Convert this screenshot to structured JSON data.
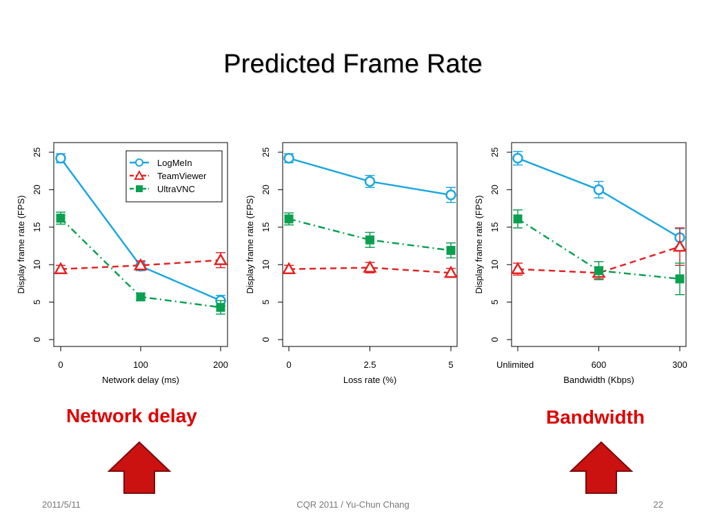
{
  "slide": {
    "title": "Predicted Frame Rate",
    "callout_left": "Network delay",
    "callout_right": "Bandwidth",
    "footer_date": "2011/5/11",
    "footer_center": "CQR 2011 / Yu-Chun Chang",
    "footer_page": "22",
    "callout_color": "#e00000",
    "arrow_color": "#cc1111"
  },
  "legend": [
    {
      "name": "LogMeIn",
      "color": "#1aa7e0",
      "marker": "circle",
      "dash": "solid"
    },
    {
      "name": "TeamViewer",
      "color": "#e52222",
      "marker": "triangle",
      "dash": "dashed"
    },
    {
      "name": "UltraVNC",
      "color": "#0aa050",
      "marker": "square",
      "dash": "dashdot"
    }
  ],
  "chart_data": [
    {
      "type": "line",
      "xlabel": "Network delay (ms)",
      "ylabel": "Display frame rate (FPS)",
      "categories": [
        "0",
        "100",
        "200"
      ],
      "ylim": [
        0,
        25
      ],
      "yticks": [
        0,
        5,
        10,
        15,
        20,
        25
      ],
      "legend": "top-right",
      "series": [
        {
          "name": "LogMeIn",
          "values": [
            24.2,
            9.8,
            5.2
          ],
          "err": [
            0.6,
            0.6,
            0.7
          ]
        },
        {
          "name": "TeamViewer",
          "values": [
            9.4,
            9.9,
            10.6
          ],
          "err": [
            0.5,
            0.6,
            1.0
          ]
        },
        {
          "name": "UltraVNC",
          "values": [
            16.2,
            5.7,
            4.3
          ],
          "err": [
            0.8,
            0.5,
            0.9
          ]
        }
      ]
    },
    {
      "type": "line",
      "xlabel": "Loss rate (%)",
      "ylabel": "Display frame rate (FPS)",
      "categories": [
        "0",
        "2.5",
        "5"
      ],
      "ylim": [
        0,
        25
      ],
      "yticks": [
        0,
        5,
        10,
        15,
        20,
        25
      ],
      "series": [
        {
          "name": "LogMeIn",
          "values": [
            24.2,
            21.1,
            19.3
          ],
          "err": [
            0.6,
            0.8,
            1.0
          ]
        },
        {
          "name": "TeamViewer",
          "values": [
            9.4,
            9.6,
            8.9
          ],
          "err": [
            0.5,
            0.7,
            0.6
          ]
        },
        {
          "name": "UltraVNC",
          "values": [
            16.1,
            13.3,
            11.9
          ],
          "err": [
            0.8,
            1.0,
            1.0
          ]
        }
      ]
    },
    {
      "type": "line",
      "xlabel": "Bandwidth (Kbps)",
      "ylabel": "Display frame rate (FPS)",
      "categories": [
        "Unlimited",
        "600",
        "300"
      ],
      "ylim": [
        0,
        25
      ],
      "yticks": [
        0,
        5,
        10,
        15,
        20,
        25
      ],
      "series": [
        {
          "name": "LogMeIn",
          "values": [
            24.2,
            20.0,
            13.6
          ],
          "err": [
            0.9,
            1.1,
            1.2
          ]
        },
        {
          "name": "TeamViewer",
          "values": [
            9.4,
            8.9,
            12.4
          ],
          "err": [
            0.8,
            0.8,
            2.5
          ]
        },
        {
          "name": "UltraVNC",
          "values": [
            16.1,
            9.2,
            8.1
          ],
          "err": [
            1.2,
            1.2,
            2.1
          ]
        }
      ]
    }
  ]
}
